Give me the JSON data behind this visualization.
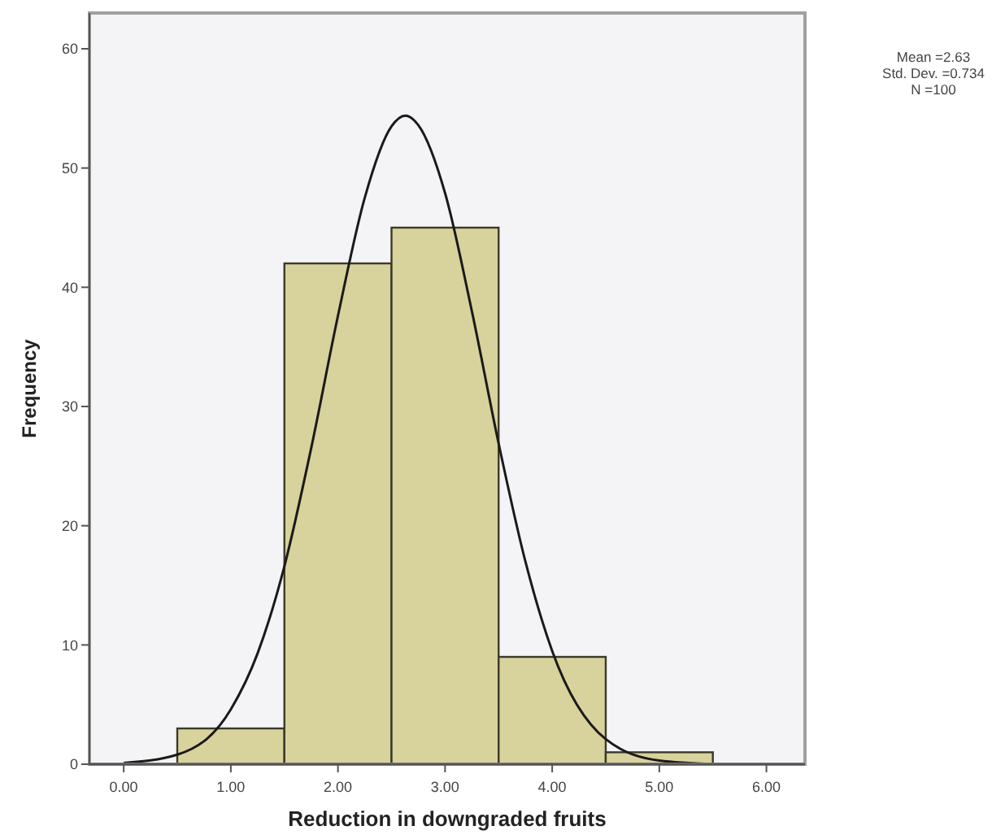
{
  "chart_data": {
    "type": "histogram",
    "xlabel": "Reduction in downgraded fruits",
    "ylabel": "Frequency",
    "bins": [
      0.5,
      1.5,
      2.5,
      3.5,
      4.5,
      5.5
    ],
    "values": [
      3,
      42,
      45,
      9,
      1
    ],
    "color": "#d8d29c",
    "series": [
      {
        "type": "line",
        "color": "#1a1a1a",
        "x": [
          0,
          0.5,
          1,
          1.25,
          1.5,
          1.75,
          2,
          2.25,
          2.5,
          2.63,
          2.75,
          3,
          3.25,
          3.5,
          3.75,
          4,
          4.5,
          5,
          5.5
        ],
        "values": [
          0.1,
          0.8,
          4.6,
          9.3,
          16.6,
          26.5,
          37.6,
          47.5,
          53.5,
          54.4,
          53.6,
          47.9,
          38,
          26.9,
          17,
          9.5,
          2.1,
          0.3,
          0
        ]
      }
    ],
    "xlim": [
      -0.32,
      6.36
    ],
    "ylim": [
      0,
      63
    ],
    "xticks": [
      {
        "value": 0,
        "label": "0.00"
      },
      {
        "value": 1,
        "label": "1.00"
      },
      {
        "value": 2,
        "label": "2.00"
      },
      {
        "value": 3,
        "label": "3.00"
      },
      {
        "value": 4,
        "label": "4.00"
      },
      {
        "value": 5,
        "label": "5.00"
      },
      {
        "value": 6,
        "label": "6.00"
      }
    ],
    "yticks": [
      0,
      10,
      20,
      30,
      40,
      50,
      60
    ],
    "grid": false,
    "annotations": [
      "Mean =2.63",
      "Std. Dev. =0.734",
      "N =100"
    ]
  }
}
